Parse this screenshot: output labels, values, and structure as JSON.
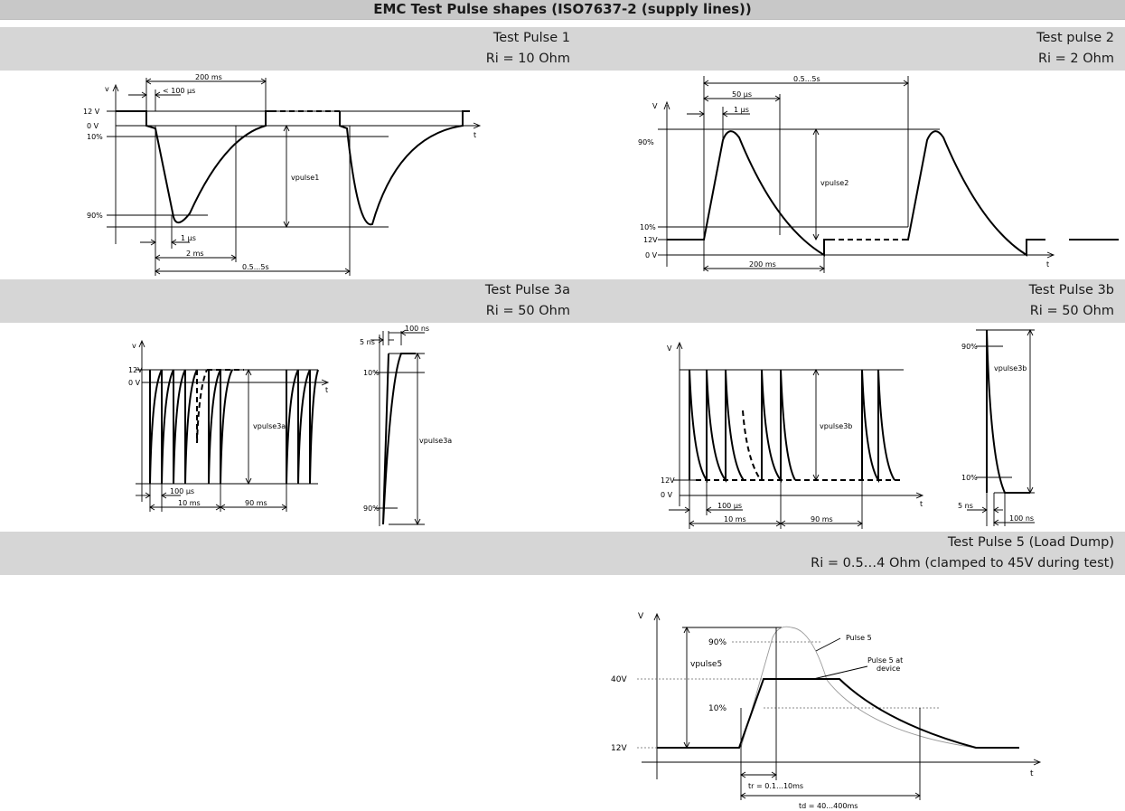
{
  "page_title": "EMC Test Pulse shapes (ISO7637-2 (supply lines))",
  "pulse1": {
    "title": "Test Pulse 1",
    "ri": "Ri = 10 Ohm",
    "labels": {
      "v": "v",
      "t": "t",
      "v12": "12 V",
      "v0": "0 V",
      "p10": "10%",
      "p90": "90%",
      "t200": "200 ms",
      "t100": "< 100 µs",
      "t1": "1 µs",
      "t2": "2 ms",
      "t05": "0.5...5s",
      "amp": "vpulse1"
    }
  },
  "pulse2": {
    "title": "Test pulse 2",
    "ri": "Ri = 2 Ohm",
    "labels": {
      "v": "V",
      "t": "t",
      "p90": "90%",
      "p10": "10%",
      "v12": "12V",
      "v0": "0 V",
      "t05": "0.5...5s",
      "t50": "50 µs",
      "t1": "1 µs",
      "t200": "200 ms",
      "amp": "vpulse2"
    }
  },
  "pulse3a": {
    "title": "Test Pulse 3a",
    "ri": "Ri = 50 Ohm",
    "labels": {
      "v": "v",
      "t": "t",
      "v12": "12V",
      "v0": "0 V",
      "t100us": "100 µs",
      "t10": "10 ms",
      "t90": "90 ms",
      "amp": "vpulse3a",
      "t5ns": "5 ns",
      "t100ns": "100 ns",
      "p10": "10%",
      "p90": "90%",
      "amp2": "vpulse3a"
    }
  },
  "pulse3b": {
    "title": "Test Pulse 3b",
    "ri": "Ri = 50 Ohm",
    "labels": {
      "v": "V",
      "t": "t",
      "v12": "12V",
      "v0": "0 V",
      "t100us": "100 µs",
      "t10": "10 ms",
      "t90": "90 ms",
      "amp": "vpulse3b",
      "p90": "90%",
      "p10": "10%",
      "t5ns": "5 ns",
      "t100ns": "100 ns",
      "amp2": "vpulse3b"
    }
  },
  "pulse5": {
    "title": "Test Pulse 5 (Load Dump)",
    "ri": "Ri = 0.5…4 Ohm (clamped to 45V during test)",
    "labels": {
      "v": "V",
      "t": "t",
      "v40": "40V",
      "v12": "12V",
      "p90": "90%",
      "p10": "10%",
      "amp": "vpulse5",
      "pulse": "Pulse 5",
      "atdev1": "Pulse 5 at",
      "atdev2": "device",
      "tr": "tr = 0.1…10ms",
      "td": "td = 40…400ms"
    }
  }
}
